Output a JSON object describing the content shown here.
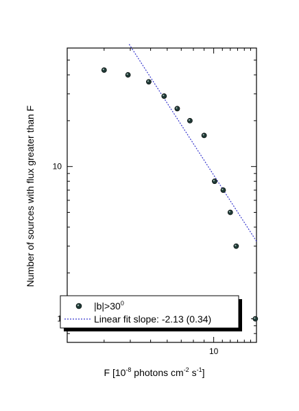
{
  "chart_data": {
    "type": "scatter",
    "x_scale": "log",
    "y_scale": "log",
    "xlim": [
      2.0,
      16.0
    ],
    "ylim": [
      0.7,
      60
    ],
    "xlabel_parts": {
      "a": "F [10",
      "b": "-8",
      "c": " photons cm",
      "d": "-2",
      "e": " s",
      "f": "-1",
      "g": "]"
    },
    "ylabel": "Number of sources with flux greater than F",
    "x_ticks": [
      {
        "value": 10,
        "label": "10"
      }
    ],
    "y_ticks": [
      {
        "value": 1,
        "label": "1"
      },
      {
        "value": 10,
        "label": "10"
      }
    ],
    "series": [
      {
        "name": "|b|>30",
        "name_sup": "0",
        "color": "#1f3a36",
        "points": [
          {
            "x": 3.0,
            "y": 43
          },
          {
            "x": 3.9,
            "y": 40
          },
          {
            "x": 4.9,
            "y": 36
          },
          {
            "x": 5.8,
            "y": 29
          },
          {
            "x": 6.7,
            "y": 24
          },
          {
            "x": 7.7,
            "y": 20
          },
          {
            "x": 9.0,
            "y": 16
          },
          {
            "x": 10.1,
            "y": 8
          },
          {
            "x": 11.1,
            "y": 7
          },
          {
            "x": 12.0,
            "y": 5
          },
          {
            "x": 12.8,
            "y": 3
          },
          {
            "x": 15.8,
            "y": 1
          }
        ]
      }
    ],
    "fit": {
      "label": "Linear fit slope: -2.13 (0.34)",
      "color": "#3333cc",
      "x_range": [
        3.95,
        16.0
      ],
      "anchor": {
        "x": 10.1,
        "y": 8.6
      },
      "slope": -2.13
    },
    "legend_position": "bottom-left"
  }
}
